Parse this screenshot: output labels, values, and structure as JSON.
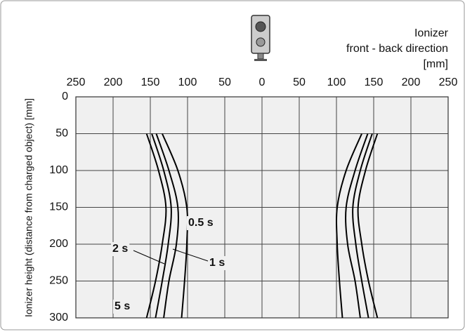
{
  "chart_data": {
    "type": "line",
    "x_label": [
      "Ionizer",
      "front - back direction",
      "[mm]"
    ],
    "y_label": "Ionizer height (distance from charged object) [mm]",
    "xlim": [
      -250,
      250
    ],
    "xticks": [
      {
        "value": -250,
        "label": "250"
      },
      {
        "value": -200,
        "label": "200"
      },
      {
        "value": -150,
        "label": "150"
      },
      {
        "value": -100,
        "label": "100"
      },
      {
        "value": -50,
        "label": "50"
      },
      0,
      50,
      100,
      150,
      200,
      250
    ],
    "ylim": [
      0,
      300
    ],
    "y_inverted": true,
    "yticks": [
      0,
      50,
      100,
      150,
      200,
      250,
      300
    ],
    "grid": true,
    "color": "#000000",
    "y": [
      50,
      100,
      150,
      200,
      250,
      300
    ],
    "series": [
      {
        "name": "0.5 s",
        "x_left": [
          -134,
          -113,
          -101,
          -101,
          -104,
          -108
        ],
        "x_right": [
          134,
          113,
          101,
          101,
          104,
          108
        ]
      },
      {
        "name": "1 s",
        "x_left": [
          -142,
          -125,
          -113,
          -115,
          -125,
          -132
        ],
        "x_right": [
          142,
          125,
          113,
          115,
          125,
          132
        ]
      },
      {
        "name": "2 s",
        "x_left": [
          -148,
          -132,
          -122,
          -126,
          -134,
          -143
        ],
        "x_right": [
          148,
          132,
          122,
          126,
          134,
          143
        ]
      },
      {
        "name": "5 s",
        "x_left": [
          -155,
          -139,
          -129,
          -134,
          -143,
          -155
        ],
        "x_right": [
          155,
          139,
          129,
          134,
          143,
          155
        ]
      }
    ]
  }
}
